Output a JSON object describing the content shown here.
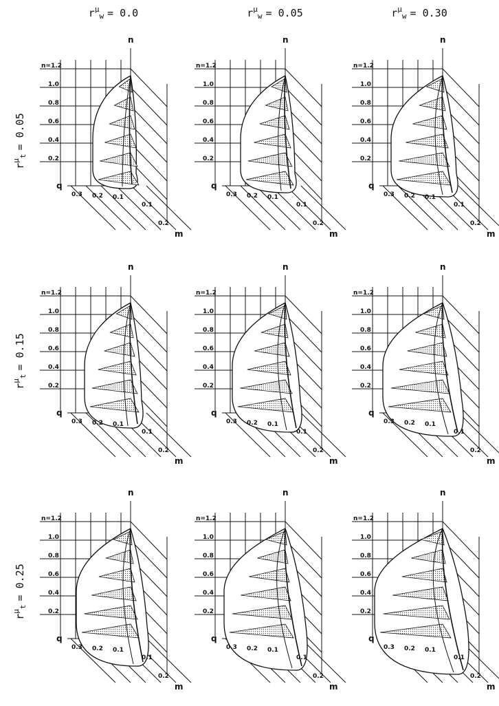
{
  "column_headers": [
    {
      "base": "r",
      "sup": "μ",
      "sub": "w",
      "value": "= 0.0"
    },
    {
      "base": "r",
      "sup": "μ",
      "sub": "w",
      "value": "= 0.05"
    },
    {
      "base": "r",
      "sup": "μ",
      "sub": "w",
      "value": "= 0.30"
    }
  ],
  "row_headers": [
    {
      "base": "r",
      "sup": "μ",
      "sub": "t",
      "value": "= 0.05"
    },
    {
      "base": "r",
      "sup": "μ",
      "sub": "t",
      "value": "= 0.15"
    },
    {
      "base": "r",
      "sup": "μ",
      "sub": "t",
      "value": "= 0.25"
    }
  ],
  "panel_labels": {
    "n_axis": "n",
    "q_axis": "q",
    "m_axis": "m",
    "n_levels": [
      "n=1.2",
      "1.0",
      "0.8",
      "0.6",
      "0.4",
      "0.2"
    ],
    "q_ticks": [
      "0.3",
      "0.2",
      "0.1"
    ],
    "m_ticks": [
      "0.1",
      "0.2"
    ]
  }
}
